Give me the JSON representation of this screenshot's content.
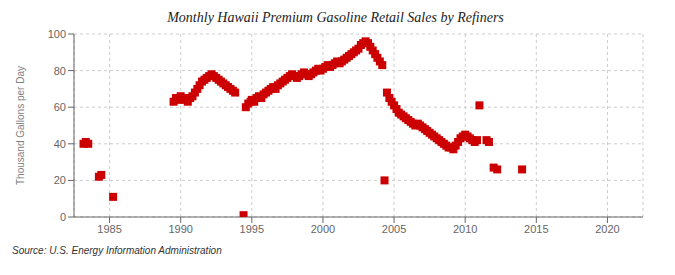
{
  "chart_data": {
    "type": "scatter",
    "title": "Monthly Hawaii Premium Gasoline Retail Sales by Refiners",
    "y_label": "Thousand Gallons per Day",
    "annotations": [
      "Source: U.S. Energy Information Administration"
    ],
    "x": [
      1983.17,
      1983.33,
      1983.5,
      1984.25,
      1984.42,
      1985.25,
      1989.5,
      1989.67,
      1989.83,
      1990.0,
      1990.17,
      1990.33,
      1990.5,
      1990.67,
      1990.83,
      1991.0,
      1991.17,
      1991.33,
      1991.5,
      1991.67,
      1991.83,
      1992.0,
      1992.17,
      1992.33,
      1992.5,
      1992.67,
      1992.83,
      1993.0,
      1993.17,
      1993.33,
      1993.5,
      1993.67,
      1993.83,
      1994.42,
      1994.58,
      1994.75,
      1994.92,
      1995.0,
      1995.17,
      1995.33,
      1995.5,
      1995.67,
      1995.83,
      1996.0,
      1996.17,
      1996.33,
      1996.5,
      1996.67,
      1996.83,
      1997.0,
      1997.17,
      1997.33,
      1997.5,
      1997.67,
      1997.83,
      1998.0,
      1998.17,
      1998.33,
      1998.5,
      1998.67,
      1998.83,
      1999.0,
      1999.17,
      1999.33,
      1999.5,
      1999.67,
      1999.83,
      2000.0,
      2000.17,
      2000.33,
      2000.5,
      2000.67,
      2000.83,
      2001.0,
      2001.17,
      2001.33,
      2001.5,
      2001.67,
      2001.83,
      2002.0,
      2002.17,
      2002.33,
      2002.5,
      2002.67,
      2002.83,
      2003.0,
      2003.17,
      2003.33,
      2003.5,
      2003.67,
      2003.83,
      2004.0,
      2004.17,
      2004.33,
      2004.5,
      2004.67,
      2004.83,
      2005.0,
      2005.17,
      2005.33,
      2005.5,
      2005.67,
      2005.83,
      2006.0,
      2006.17,
      2006.33,
      2006.5,
      2006.67,
      2006.83,
      2007.0,
      2007.17,
      2007.33,
      2007.5,
      2007.67,
      2007.83,
      2008.0,
      2008.17,
      2008.33,
      2008.5,
      2008.67,
      2008.83,
      2009.0,
      2009.17,
      2009.33,
      2009.5,
      2009.67,
      2009.83,
      2010.0,
      2010.17,
      2010.33,
      2010.5,
      2010.67,
      2010.83,
      2011.0,
      2011.5,
      2011.67,
      2012.0,
      2012.25,
      2014.0
    ],
    "values": [
      40,
      41,
      40,
      22,
      23,
      11,
      63,
      65,
      64,
      66,
      65,
      64,
      63,
      65,
      66,
      68,
      70,
      72,
      74,
      75,
      76,
      77,
      78,
      77,
      76,
      75,
      74,
      73,
      72,
      71,
      70,
      69,
      68,
      1,
      60,
      62,
      63,
      64,
      63,
      65,
      66,
      65,
      67,
      68,
      69,
      70,
      71,
      70,
      72,
      73,
      74,
      75,
      76,
      77,
      78,
      77,
      76,
      77,
      78,
      79,
      78,
      77,
      78,
      79,
      80,
      81,
      80,
      81,
      82,
      83,
      82,
      83,
      84,
      85,
      84,
      85,
      86,
      87,
      88,
      89,
      90,
      91,
      92,
      94,
      95,
      96,
      95,
      93,
      91,
      89,
      87,
      85,
      83,
      20,
      68,
      65,
      63,
      61,
      59,
      57,
      56,
      55,
      54,
      53,
      52,
      51,
      50,
      51,
      50,
      49,
      48,
      47,
      46,
      45,
      44,
      43,
      42,
      41,
      40,
      39,
      38,
      38,
      37,
      39,
      41,
      43,
      44,
      45,
      44,
      43,
      42,
      41,
      42,
      61,
      42,
      41,
      27,
      26,
      26
    ],
    "color": "#cc0000",
    "marker": "square",
    "xlim": [
      1982.5,
      2022.5
    ],
    "xticks": [
      1985,
      1990,
      1995,
      2000,
      2005,
      2010,
      2015,
      2020
    ],
    "ylim": [
      0,
      100
    ],
    "yticks": [
      0,
      20,
      40,
      60,
      80,
      100
    ],
    "grid": true
  }
}
